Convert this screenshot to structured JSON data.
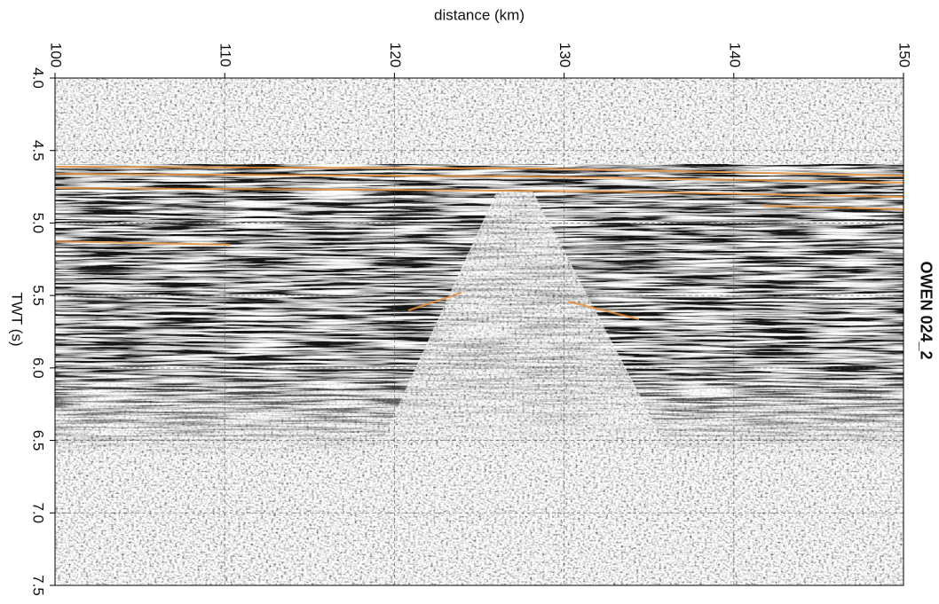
{
  "chart_data": {
    "type": "seismic-section",
    "title": "OWEN 024_2",
    "x_label": "distance (km)",
    "y_label": "TWT (s)",
    "xlim": [
      100,
      150
    ],
    "xticks": [
      100,
      110,
      120,
      130,
      140,
      150
    ],
    "ylim": [
      4,
      7.5
    ],
    "y_inverted": true,
    "yticks": [
      {
        "value": 4,
        "label": "4.0"
      },
      4.5,
      {
        "value": 5,
        "label": "5.0"
      },
      5.5,
      {
        "value": 6,
        "label": "6.0"
      },
      6.5,
      {
        "value": 7,
        "label": "7.0"
      },
      7.5
    ],
    "grid": true
  }
}
